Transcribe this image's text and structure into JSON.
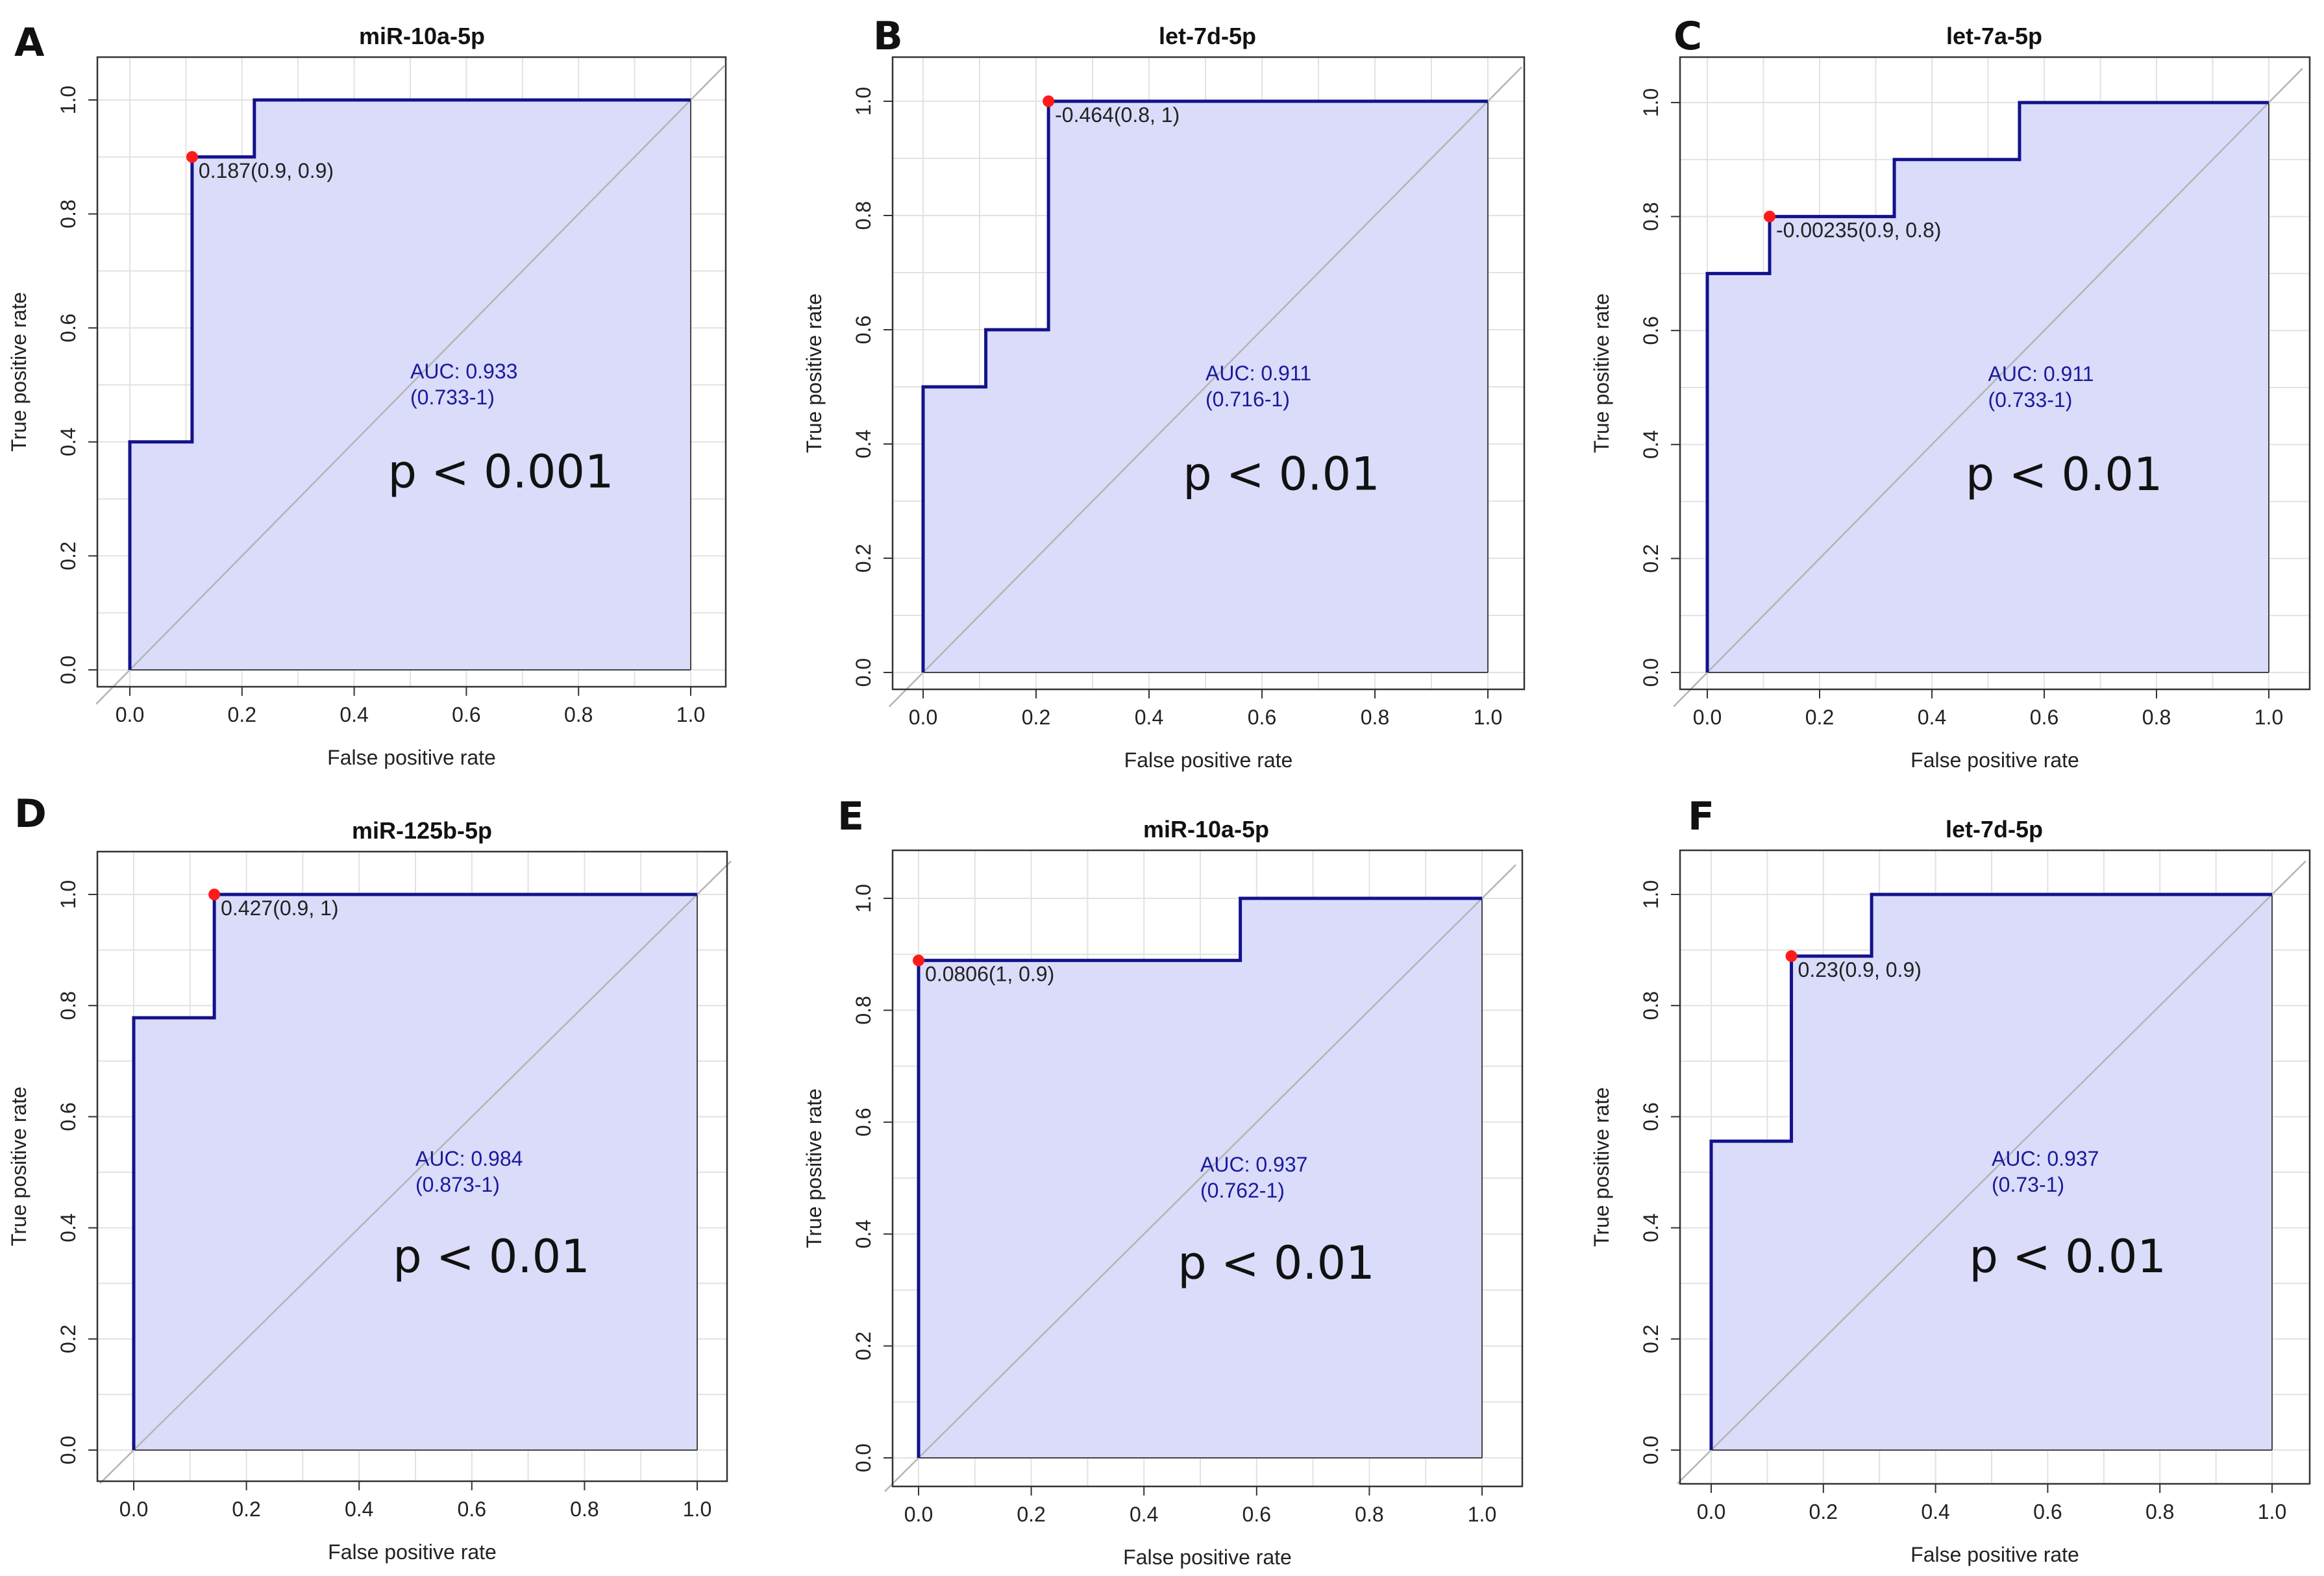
{
  "figure": {
    "style": {
      "fill_color": "#dadcfa",
      "roc_line_color": "#12128c",
      "grid_color": "#e2e2e2",
      "diagonal_color": "#b4b4b4",
      "cutoff_point_color": "#ff1a1a",
      "auc_text_color": "#1a1a9c"
    },
    "xlabel": "False positive rate",
    "ylabel": "True positive rate"
  },
  "chart_data": [
    {
      "panel": "A",
      "type": "line",
      "title": "miR-10a-5p",
      "xlabel": "False positive rate",
      "ylabel": "True positive rate",
      "xlim": [
        0,
        1
      ],
      "ylim": [
        0,
        1
      ],
      "xticks": [
        "0.0",
        "0.2",
        "0.4",
        "0.6",
        "0.8",
        "1.0"
      ],
      "yticks": [
        "0.0",
        "0.2",
        "0.4",
        "0.6",
        "0.8",
        "1.0"
      ],
      "grid": true,
      "series": [
        {
          "name": "ROC",
          "x": [
            0,
            0,
            0.111,
            0.111,
            0.222,
            0.222,
            1
          ],
          "y": [
            0,
            0.4,
            0.4,
            0.9,
            0.9,
            1,
            1
          ]
        }
      ],
      "cutoff": {
        "x": 0.111,
        "y": 0.9,
        "label": "0.187(0.9, 0.9)"
      },
      "auc": "AUC: 0.933",
      "ci": "(0.733-1)",
      "p": "p < 0.001"
    },
    {
      "panel": "B",
      "type": "line",
      "title": "let-7d-5p",
      "xlabel": "False positive rate",
      "ylabel": "True positive rate",
      "xlim": [
        0,
        1
      ],
      "ylim": [
        0,
        1
      ],
      "xticks": [
        "0.0",
        "0.2",
        "0.4",
        "0.6",
        "0.8",
        "1.0"
      ],
      "yticks": [
        "0.0",
        "0.2",
        "0.4",
        "0.6",
        "0.8",
        "1.0"
      ],
      "grid": true,
      "series": [
        {
          "name": "ROC",
          "x": [
            0,
            0,
            0.111,
            0.111,
            0.222,
            0.222,
            1
          ],
          "y": [
            0,
            0.5,
            0.5,
            0.6,
            0.6,
            1,
            1
          ]
        }
      ],
      "cutoff": {
        "x": 0.222,
        "y": 1,
        "label": "-0.464(0.8, 1)"
      },
      "auc": "AUC: 0.911",
      "ci": "(0.716-1)",
      "p": "p < 0.01"
    },
    {
      "panel": "C",
      "type": "line",
      "title": "let-7a-5p",
      "xlabel": "False positive rate",
      "ylabel": "True positive rate",
      "xlim": [
        0,
        1
      ],
      "ylim": [
        0,
        1
      ],
      "xticks": [
        "0.0",
        "0.2",
        "0.4",
        "0.6",
        "0.8",
        "1.0"
      ],
      "yticks": [
        "0.0",
        "0.2",
        "0.4",
        "0.6",
        "0.8",
        "1.0"
      ],
      "grid": true,
      "series": [
        {
          "name": "ROC",
          "x": [
            0,
            0,
            0.111,
            0.111,
            0.333,
            0.333,
            0.556,
            0.556,
            1
          ],
          "y": [
            0,
            0.7,
            0.7,
            0.8,
            0.8,
            0.9,
            0.9,
            1,
            1
          ]
        }
      ],
      "cutoff": {
        "x": 0.111,
        "y": 0.8,
        "label": "-0.00235(0.9, 0.8)"
      },
      "auc": "AUC: 0.911",
      "ci": "(0.733-1)",
      "p": "p < 0.01"
    },
    {
      "panel": "D",
      "type": "line",
      "title": "miR-125b-5p",
      "xlabel": "False positive rate",
      "ylabel": "True positive rate",
      "xlim": [
        0,
        1
      ],
      "ylim": [
        0,
        1
      ],
      "xticks": [
        "0.0",
        "0.2",
        "0.4",
        "0.6",
        "0.8",
        "1.0"
      ],
      "yticks": [
        "0.0",
        "0.2",
        "0.4",
        "0.6",
        "0.8",
        "1.0"
      ],
      "grid": true,
      "series": [
        {
          "name": "ROC",
          "x": [
            0,
            0,
            0.143,
            0.143,
            1
          ],
          "y": [
            0,
            0.778,
            0.778,
            1,
            1
          ]
        }
      ],
      "cutoff": {
        "x": 0.143,
        "y": 1,
        "label": "0.427(0.9, 1)"
      },
      "auc": "AUC: 0.984",
      "ci": "(0.873-1)",
      "p": "p < 0.01"
    },
    {
      "panel": "E",
      "type": "line",
      "title": "miR-10a-5p",
      "xlabel": "False positive rate",
      "ylabel": "True positive rate",
      "xlim": [
        0,
        1
      ],
      "ylim": [
        0,
        1
      ],
      "xticks": [
        "0.0",
        "0.2",
        "0.4",
        "0.6",
        "0.8",
        "1.0"
      ],
      "yticks": [
        "0.0",
        "0.2",
        "0.4",
        "0.6",
        "0.8",
        "1.0"
      ],
      "grid": true,
      "series": [
        {
          "name": "ROC",
          "x": [
            0,
            0,
            0.571,
            0.571,
            1
          ],
          "y": [
            0,
            0.889,
            0.889,
            1,
            1
          ]
        }
      ],
      "cutoff": {
        "x": 0,
        "y": 0.889,
        "label": "0.0806(1, 0.9)"
      },
      "auc": "AUC: 0.937",
      "ci": "(0.762-1)",
      "p": "p < 0.01"
    },
    {
      "panel": "F",
      "type": "line",
      "title": "let-7d-5p",
      "xlabel": "False positive rate",
      "ylabel": "True positive rate",
      "xlim": [
        0,
        1
      ],
      "ylim": [
        0,
        1
      ],
      "xticks": [
        "0.0",
        "0.2",
        "0.4",
        "0.6",
        "0.8",
        "1.0"
      ],
      "yticks": [
        "0.0",
        "0.2",
        "0.4",
        "0.6",
        "0.8",
        "1.0"
      ],
      "grid": true,
      "series": [
        {
          "name": "ROC",
          "x": [
            0,
            0,
            0.143,
            0.143,
            0.286,
            0.286,
            1
          ],
          "y": [
            0,
            0.556,
            0.556,
            0.889,
            0.889,
            1,
            1
          ]
        }
      ],
      "cutoff": {
        "x": 0.143,
        "y": 0.889,
        "label": "0.23(0.9, 0.9)"
      },
      "auc": "AUC: 0.937",
      "ci": "(0.73-1)",
      "p": "p < 0.01"
    }
  ]
}
